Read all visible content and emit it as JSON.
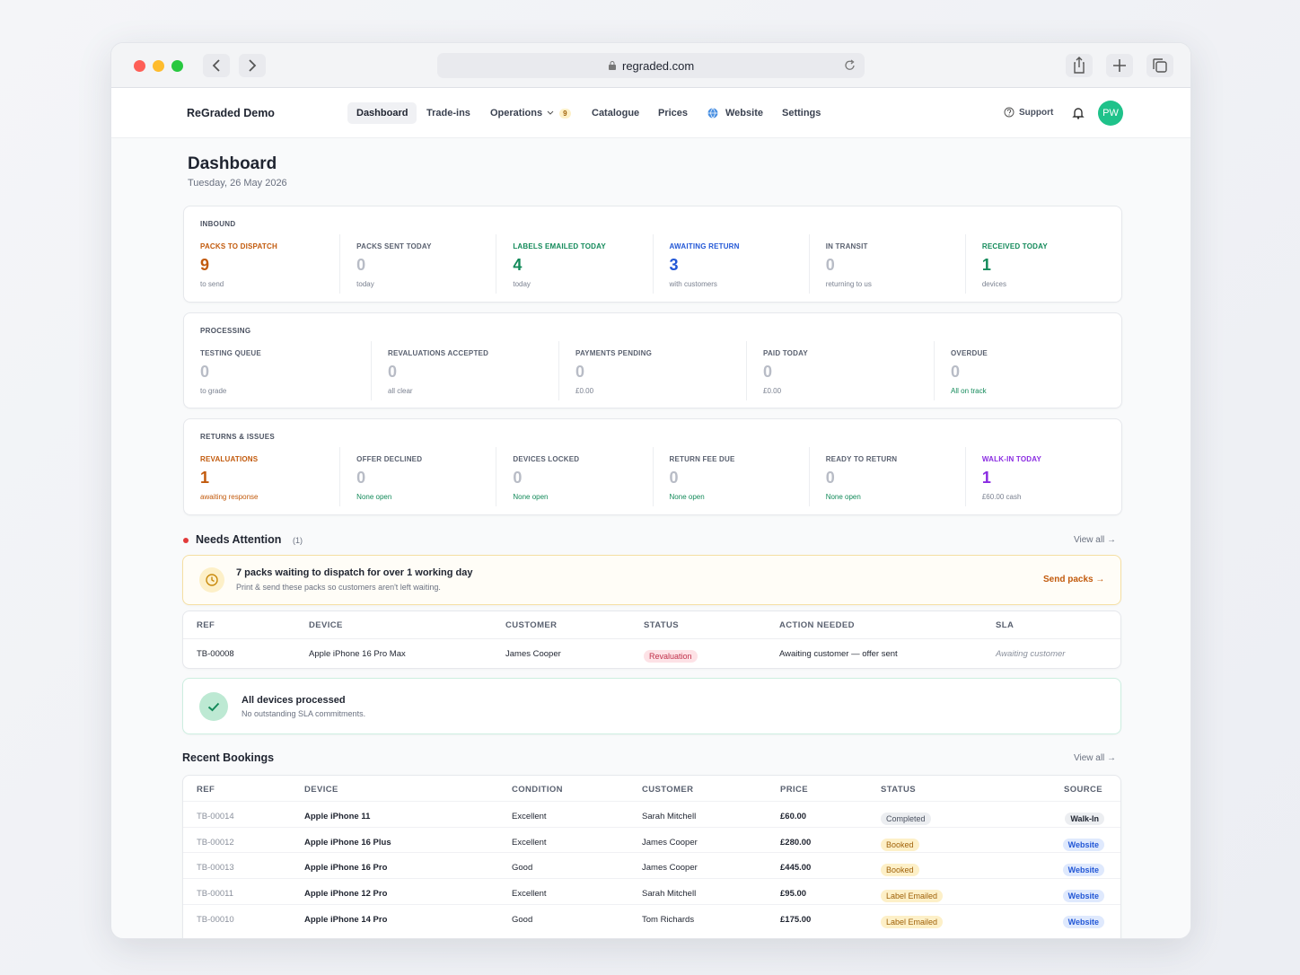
{
  "browser": {
    "url": "regraded.com"
  },
  "nav": {
    "brand": "ReGraded Demo",
    "items": [
      "Dashboard",
      "Trade-ins",
      "Operations",
      "Catalogue",
      "Prices",
      "Website",
      "Settings"
    ],
    "operations_badge": 9,
    "support": "Support",
    "avatar": "PW"
  },
  "header": {
    "title": "Dashboard",
    "date": "Tuesday, 26 May 2026"
  },
  "sections": [
    {
      "title": "INBOUND",
      "stats": [
        {
          "label": "PACKS TO DISPATCH",
          "value": 9,
          "sub": "to send",
          "color": "#c25a0c"
        },
        {
          "label": "PACKS SENT TODAY",
          "value": 0,
          "sub": "today"
        },
        {
          "label": "LABELS EMAILED TODAY",
          "value": 4,
          "sub": "today",
          "color": "#138a5a"
        },
        {
          "label": "AWAITING RETURN",
          "value": 3,
          "sub": "with customers",
          "color": "#2257d6"
        },
        {
          "label": "IN TRANSIT",
          "value": 0,
          "sub": "returning to us"
        },
        {
          "label": "RECEIVED TODAY",
          "value": 1,
          "sub": "devices",
          "color": "#138a5a"
        }
      ]
    },
    {
      "title": "PROCESSING",
      "stats": [
        {
          "label": "TESTING QUEUE",
          "value": 0,
          "sub": "to grade"
        },
        {
          "label": "REVALUATIONS ACCEPTED",
          "value": 0,
          "sub": "all clear"
        },
        {
          "label": "PAYMENTS PENDING",
          "value": 0,
          "sub": "£0.00"
        },
        {
          "label": "PAID TODAY",
          "value": 0,
          "sub": "£0.00"
        },
        {
          "label": "OVERDUE",
          "value": 0,
          "sub": "All on track",
          "sub_color": "#138a5a"
        }
      ]
    },
    {
      "title": "RETURNS & ISSUES",
      "stats": [
        {
          "label": "REVALUATIONS",
          "value": 1,
          "sub": "awaiting response",
          "color": "#c25a0c",
          "sub_color": "#c25a0c"
        },
        {
          "label": "OFFER DECLINED",
          "value": 0,
          "sub": "None open",
          "sub_color": "#138a5a"
        },
        {
          "label": "DEVICES LOCKED",
          "value": 0,
          "sub": "None open",
          "sub_color": "#138a5a"
        },
        {
          "label": "RETURN FEE DUE",
          "value": 0,
          "sub": "None open",
          "sub_color": "#138a5a"
        },
        {
          "label": "READY TO RETURN",
          "value": 0,
          "sub": "None open",
          "sub_color": "#138a5a"
        },
        {
          "label": "WALK-IN TODAY",
          "value": 1,
          "sub": "£60.00 cash",
          "color": "#8a2be2"
        }
      ]
    }
  ],
  "attention": {
    "title": "Needs Attention",
    "count": "(1)",
    "view_all": "View all →",
    "alert": {
      "title": "7 packs waiting to dispatch for over 1 working day",
      "text": "Print & send these packs so customers aren't left waiting.",
      "action": "Send packs →"
    },
    "table": {
      "headers": [
        "REF",
        "DEVICE",
        "CUSTOMER",
        "STATUS",
        "ACTION NEEDED",
        "SLA"
      ],
      "rows": [
        {
          "ref": "TB-00008",
          "device": "Apple iPhone 16 Pro Max",
          "customer": "James Cooper",
          "status": {
            "label": "Revaluation",
            "bg": "#fde2e6",
            "fg": "#c0304a"
          },
          "action": "Awaiting customer — offer sent",
          "sla": "Awaiting customer"
        }
      ]
    }
  },
  "processed": {
    "title": "All devices processed",
    "text": "No outstanding SLA commitments."
  },
  "bookings": {
    "title": "Recent Bookings",
    "view_all": "View all →",
    "headers": [
      "REF",
      "DEVICE",
      "CONDITION",
      "CUSTOMER",
      "PRICE",
      "STATUS",
      "SOURCE"
    ],
    "rows": [
      {
        "ref": "TB-00014",
        "device": "Apple iPhone 11",
        "condition": "Excellent",
        "customer": "Sarah Mitchell",
        "price": "£60.00",
        "status": {
          "label": "Completed",
          "bg": "#eceef1",
          "fg": "#4a5160"
        },
        "source": {
          "label": "Walk-In",
          "bg": "#eceef1",
          "fg": "#1f2430"
        }
      },
      {
        "ref": "TB-00012",
        "device": "Apple iPhone 16 Plus",
        "condition": "Excellent",
        "customer": "James Cooper",
        "price": "£280.00",
        "status": {
          "label": "Booked",
          "bg": "#fdf0c8",
          "fg": "#a0620a"
        },
        "source": {
          "label": "Website",
          "bg": "#dfe9fd",
          "fg": "#2257d6"
        }
      },
      {
        "ref": "TB-00013",
        "device": "Apple iPhone 16 Pro",
        "condition": "Good",
        "customer": "James Cooper",
        "price": "£445.00",
        "status": {
          "label": "Booked",
          "bg": "#fdf0c8",
          "fg": "#a0620a"
        },
        "source": {
          "label": "Website",
          "bg": "#dfe9fd",
          "fg": "#2257d6"
        }
      },
      {
        "ref": "TB-00011",
        "device": "Apple iPhone 12 Pro",
        "condition": "Excellent",
        "customer": "Sarah Mitchell",
        "price": "£95.00",
        "status": {
          "label": "Label Emailed",
          "bg": "#fdf0c8",
          "fg": "#a0620a"
        },
        "source": {
          "label": "Website",
          "bg": "#dfe9fd",
          "fg": "#2257d6"
        }
      },
      {
        "ref": "TB-00010",
        "device": "Apple iPhone 14 Pro",
        "condition": "Good",
        "customer": "Tom Richards",
        "price": "£175.00",
        "status": {
          "label": "Label Emailed",
          "bg": "#fdf0c8",
          "fg": "#a0620a"
        },
        "source": {
          "label": "Website",
          "bg": "#dfe9fd",
          "fg": "#2257d6"
        }
      }
    ]
  }
}
